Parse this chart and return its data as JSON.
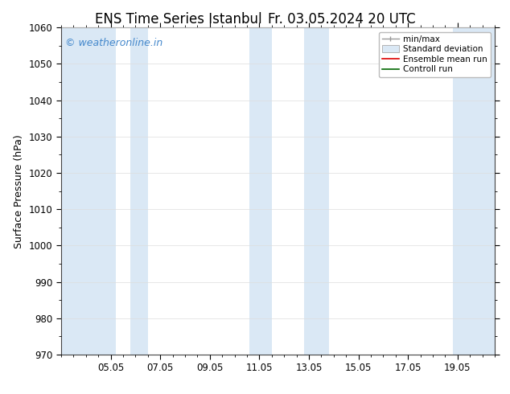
{
  "title_left": "ENS Time Series Istanbul",
  "title_right": "Fr. 03.05.2024 20 UTC",
  "ylabel": "Surface Pressure (hPa)",
  "ylim": [
    970,
    1060
  ],
  "yticks": [
    970,
    980,
    990,
    1000,
    1010,
    1020,
    1030,
    1040,
    1050,
    1060
  ],
  "x_tick_labels": [
    "05.05",
    "07.05",
    "09.05",
    "11.05",
    "13.05",
    "15.05",
    "17.05",
    "19.05"
  ],
  "x_tick_positions": [
    2,
    4,
    6,
    8,
    10,
    12,
    14,
    16
  ],
  "x_min": 0,
  "x_max": 17.5,
  "shaded_bands": [
    {
      "x_start": 0.0,
      "x_end": 2.2,
      "color": "#dae8f5"
    },
    {
      "x_start": 2.8,
      "x_end": 3.5,
      "color": "#dae8f5"
    },
    {
      "x_start": 7.6,
      "x_end": 8.5,
      "color": "#dae8f5"
    },
    {
      "x_start": 9.8,
      "x_end": 10.8,
      "color": "#dae8f5"
    },
    {
      "x_start": 15.8,
      "x_end": 17.5,
      "color": "#dae8f5"
    }
  ],
  "watermark_text": "© weatheronline.in",
  "watermark_color": "#4488cc",
  "legend_labels": [
    "min/max",
    "Standard deviation",
    "Ensemble mean run",
    "Controll run"
  ],
  "legend_line_colors": [
    "#999999",
    "#c8daea",
    "#dd0000",
    "#006600"
  ],
  "background_color": "#ffffff",
  "plot_bg_color": "#ffffff",
  "title_fontsize": 12,
  "axis_label_fontsize": 9,
  "tick_fontsize": 8.5,
  "legend_fontsize": 7.5
}
